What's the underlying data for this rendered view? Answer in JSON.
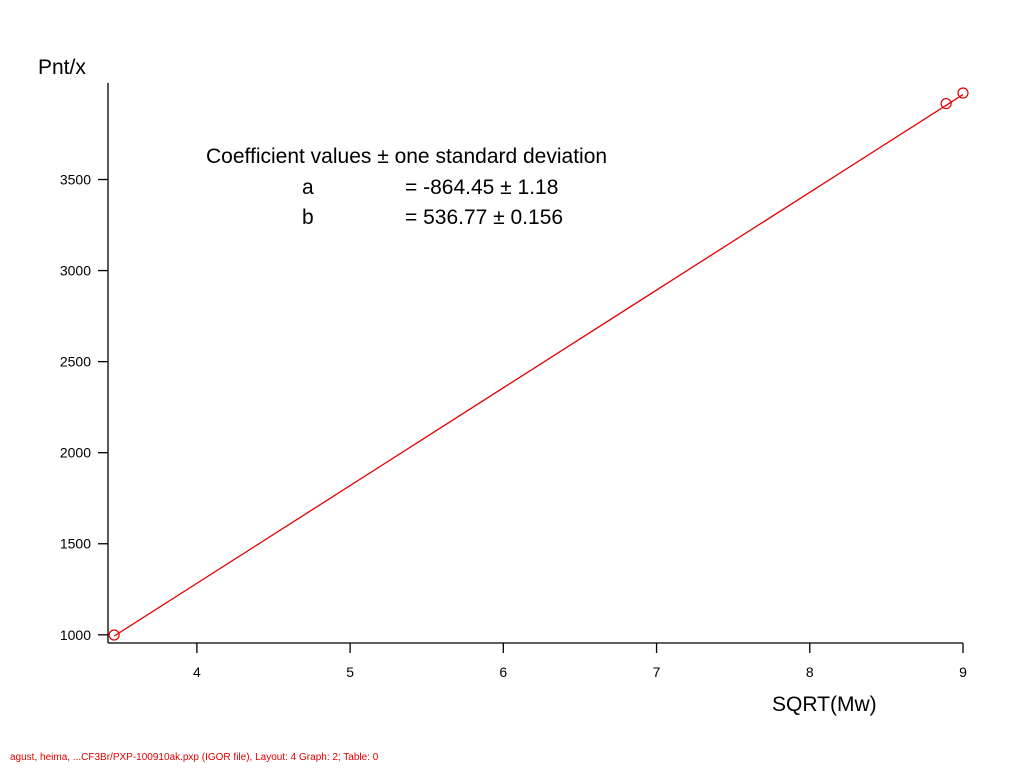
{
  "chart_data": {
    "type": "scatter",
    "xlabel": "SQRT(Mw)",
    "ylabel": "Pnt/x",
    "xlim": [
      3.42,
      9.0
    ],
    "ylim": [
      955,
      4030
    ],
    "x_ticks": [
      4,
      5,
      6,
      7,
      8,
      9
    ],
    "y_ticks": [
      1000,
      1500,
      2000,
      2500,
      3000,
      3500
    ],
    "grid": false,
    "legend": "none",
    "series": [
      {
        "points": [
          {
            "x": 3.46,
            "y": 999
          },
          {
            "x": 8.89,
            "y": 3917
          },
          {
            "x": 9.0,
            "y": 3975
          }
        ]
      }
    ],
    "fit_line": {
      "a": -864.45,
      "b": 536.77,
      "x_range": [
        3.46,
        9.0
      ]
    },
    "colors": {
      "series": "#e00000",
      "axis": "#000000"
    },
    "annotation": {
      "header": "Coefficient values ± one standard deviation",
      "rows": [
        {
          "name": "a",
          "value": "= -864.45 ± 1.18"
        },
        {
          "name": "b",
          "value": "= 536.77 ± 0.156"
        }
      ]
    }
  },
  "footer": "agust, heima, ...CF3Br/PXP-100910ak.pxp (IGOR file), Layout: 4 Graph: 2; Table: 0"
}
